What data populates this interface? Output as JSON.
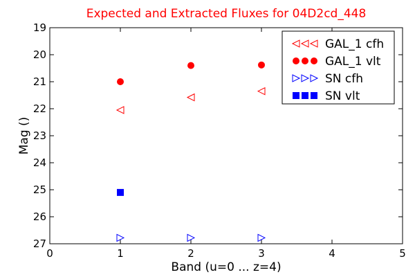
{
  "chart_data": {
    "type": "scatter",
    "title": "Expected and Extracted Fluxes for 04D2cd_448",
    "title_color": "#ff0000",
    "xlabel": "Band (u=0 ... z=4)",
    "ylabel": "Mag ()",
    "xlim": [
      0,
      5
    ],
    "ylim": [
      19,
      27
    ],
    "y_inverted": true,
    "x_ticks": [
      "0",
      "1",
      "2",
      "3",
      "4",
      "5"
    ],
    "y_ticks": [
      "19",
      "20",
      "21",
      "22",
      "23",
      "24",
      "25",
      "26",
      "27"
    ],
    "grid": false,
    "legend_position": "top-right",
    "series": [
      {
        "name": "GAL_1 cfh",
        "marker": "triangle-left-open",
        "color": "#ff0000",
        "x": [
          1,
          2,
          3
        ],
        "y": [
          22.05,
          21.58,
          21.35
        ]
      },
      {
        "name": "GAL_1 vlt",
        "marker": "circle-filled",
        "color": "#ff0000",
        "x": [
          1,
          2,
          3
        ],
        "y": [
          21.0,
          20.4,
          20.38
        ]
      },
      {
        "name": "SN cfh",
        "marker": "triangle-right-open",
        "color": "#0000ff",
        "x": [
          1,
          2,
          3
        ],
        "y": [
          26.78,
          26.78,
          26.78
        ]
      },
      {
        "name": "SN vlt",
        "marker": "square-filled",
        "color": "#0000ff",
        "x": [
          1
        ],
        "y": [
          25.1
        ]
      }
    ]
  }
}
